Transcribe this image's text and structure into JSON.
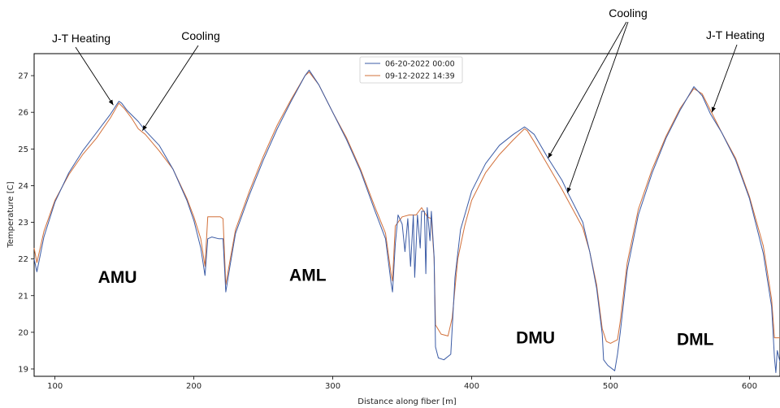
{
  "chart_data": {
    "type": "line",
    "title": "",
    "xlabel": "Distance along fiber [m]",
    "ylabel": "Temperature [C]",
    "xlim": [
      85,
      622
    ],
    "ylim": [
      18.8,
      27.6
    ],
    "xticks": [
      100,
      200,
      300,
      400,
      500,
      600
    ],
    "yticks": [
      19,
      20,
      21,
      22,
      23,
      24,
      25,
      26,
      27
    ],
    "grid": false,
    "legend_position": "top-center",
    "series": [
      {
        "name": "06-20-2022 00:00",
        "color": "#3b5ba5",
        "points": [
          [
            85,
            22.0
          ],
          [
            87,
            21.65
          ],
          [
            92,
            22.6
          ],
          [
            100,
            23.55
          ],
          [
            110,
            24.35
          ],
          [
            120,
            24.95
          ],
          [
            130,
            25.45
          ],
          [
            140,
            25.95
          ],
          [
            146,
            26.3
          ],
          [
            148,
            26.25
          ],
          [
            152,
            26.05
          ],
          [
            160,
            25.75
          ],
          [
            165,
            25.5
          ],
          [
            175,
            25.1
          ],
          [
            185,
            24.45
          ],
          [
            195,
            23.6
          ],
          [
            200,
            23.05
          ],
          [
            205,
            22.3
          ],
          [
            208,
            21.55
          ],
          [
            210,
            22.55
          ],
          [
            213,
            22.6
          ],
          [
            218,
            22.55
          ],
          [
            221,
            22.55
          ],
          [
            223,
            21.1
          ],
          [
            226,
            21.8
          ],
          [
            230,
            22.7
          ],
          [
            240,
            23.75
          ],
          [
            250,
            24.7
          ],
          [
            260,
            25.55
          ],
          [
            270,
            26.3
          ],
          [
            280,
            27.0
          ],
          [
            283,
            27.15
          ],
          [
            290,
            26.75
          ],
          [
            300,
            26.0
          ],
          [
            310,
            25.25
          ],
          [
            320,
            24.4
          ],
          [
            330,
            23.35
          ],
          [
            338,
            22.55
          ],
          [
            342,
            21.35
          ],
          [
            343,
            21.1
          ],
          [
            345,
            22.4
          ],
          [
            347,
            23.2
          ],
          [
            350,
            22.95
          ],
          [
            352,
            22.2
          ],
          [
            354,
            23.1
          ],
          [
            356,
            21.8
          ],
          [
            358,
            23.2
          ],
          [
            359,
            21.5
          ],
          [
            361,
            23.2
          ],
          [
            363,
            22.3
          ],
          [
            364,
            23.3
          ],
          [
            366,
            23.3
          ],
          [
            367,
            21.6
          ],
          [
            368,
            23.4
          ],
          [
            370,
            22.5
          ],
          [
            371,
            23.3
          ],
          [
            373,
            22.05
          ],
          [
            374,
            19.6
          ],
          [
            376,
            19.3
          ],
          [
            380,
            19.25
          ],
          [
            385,
            19.4
          ],
          [
            388,
            21.5
          ],
          [
            392,
            22.8
          ],
          [
            400,
            23.85
          ],
          [
            410,
            24.6
          ],
          [
            420,
            25.1
          ],
          [
            430,
            25.4
          ],
          [
            438,
            25.6
          ],
          [
            440,
            25.55
          ],
          [
            445,
            25.4
          ],
          [
            455,
            24.75
          ],
          [
            465,
            24.15
          ],
          [
            470,
            23.75
          ],
          [
            480,
            23.0
          ],
          [
            485,
            22.2
          ],
          [
            490,
            21.2
          ],
          [
            494,
            19.95
          ],
          [
            495,
            19.25
          ],
          [
            498,
            19.1
          ],
          [
            503,
            18.95
          ],
          [
            505,
            19.4
          ],
          [
            507,
            20.0
          ],
          [
            512,
            21.7
          ],
          [
            520,
            23.2
          ],
          [
            530,
            24.35
          ],
          [
            540,
            25.3
          ],
          [
            550,
            26.05
          ],
          [
            560,
            26.7
          ],
          [
            566,
            26.45
          ],
          [
            572,
            25.95
          ],
          [
            580,
            25.45
          ],
          [
            590,
            24.7
          ],
          [
            600,
            23.65
          ],
          [
            610,
            22.15
          ],
          [
            616,
            20.7
          ],
          [
            618,
            19.3
          ],
          [
            619,
            18.9
          ],
          [
            620,
            19.5
          ],
          [
            622,
            19.2
          ]
        ]
      },
      {
        "name": "09-12-2022 14:39",
        "color": "#d2703a",
        "points": [
          [
            85,
            22.3
          ],
          [
            87,
            21.9
          ],
          [
            92,
            22.75
          ],
          [
            100,
            23.6
          ],
          [
            110,
            24.3
          ],
          [
            120,
            24.85
          ],
          [
            130,
            25.3
          ],
          [
            140,
            25.85
          ],
          [
            146,
            26.25
          ],
          [
            150,
            26.1
          ],
          [
            155,
            25.85
          ],
          [
            160,
            25.55
          ],
          [
            165,
            25.4
          ],
          [
            175,
            24.95
          ],
          [
            185,
            24.45
          ],
          [
            195,
            23.65
          ],
          [
            200,
            23.15
          ],
          [
            205,
            22.55
          ],
          [
            208,
            21.8
          ],
          [
            210,
            23.15
          ],
          [
            215,
            23.15
          ],
          [
            219,
            23.15
          ],
          [
            221,
            23.1
          ],
          [
            223,
            21.3
          ],
          [
            226,
            21.95
          ],
          [
            230,
            22.8
          ],
          [
            240,
            23.85
          ],
          [
            250,
            24.8
          ],
          [
            260,
            25.65
          ],
          [
            270,
            26.35
          ],
          [
            280,
            27.0
          ],
          [
            283,
            27.1
          ],
          [
            290,
            26.75
          ],
          [
            300,
            26.0
          ],
          [
            310,
            25.3
          ],
          [
            320,
            24.45
          ],
          [
            330,
            23.45
          ],
          [
            338,
            22.7
          ],
          [
            342,
            21.6
          ],
          [
            343,
            21.4
          ],
          [
            345,
            22.9
          ],
          [
            350,
            23.15
          ],
          [
            355,
            23.2
          ],
          [
            360,
            23.2
          ],
          [
            364,
            23.4
          ],
          [
            368,
            23.15
          ],
          [
            371,
            23.1
          ],
          [
            373,
            22.0
          ],
          [
            374,
            20.2
          ],
          [
            378,
            19.95
          ],
          [
            383,
            19.9
          ],
          [
            386,
            20.4
          ],
          [
            390,
            22.0
          ],
          [
            395,
            22.9
          ],
          [
            400,
            23.6
          ],
          [
            410,
            24.35
          ],
          [
            420,
            24.85
          ],
          [
            430,
            25.25
          ],
          [
            438,
            25.55
          ],
          [
            440,
            25.5
          ],
          [
            445,
            25.2
          ],
          [
            455,
            24.55
          ],
          [
            465,
            23.9
          ],
          [
            470,
            23.55
          ],
          [
            480,
            22.85
          ],
          [
            485,
            22.2
          ],
          [
            490,
            21.3
          ],
          [
            494,
            20.1
          ],
          [
            497,
            19.75
          ],
          [
            500,
            19.7
          ],
          [
            505,
            19.8
          ],
          [
            507,
            20.3
          ],
          [
            512,
            21.9
          ],
          [
            520,
            23.35
          ],
          [
            530,
            24.45
          ],
          [
            540,
            25.35
          ],
          [
            550,
            26.1
          ],
          [
            560,
            26.65
          ],
          [
            566,
            26.5
          ],
          [
            572,
            26.05
          ],
          [
            580,
            25.45
          ],
          [
            590,
            24.75
          ],
          [
            600,
            23.7
          ],
          [
            610,
            22.35
          ],
          [
            616,
            20.9
          ],
          [
            618,
            19.85
          ],
          [
            622,
            19.85
          ]
        ]
      }
    ],
    "annotations": [
      {
        "text": "J-T Heating",
        "target": [
          142,
          26.2
        ]
      },
      {
        "text": "Cooling",
        "target": [
          163,
          25.5
        ]
      },
      {
        "text": "Cooling",
        "target": [
          455,
          24.75
        ]
      },
      {
        "text": "Cooling",
        "target": [
          469,
          23.8
        ]
      },
      {
        "text": "J-T Heating",
        "target": [
          573,
          26.0
        ]
      }
    ],
    "region_labels": [
      {
        "text": "AMU",
        "x": 145,
        "y": 21.35
      },
      {
        "text": "AML",
        "x": 282,
        "y": 21.4
      },
      {
        "text": "DMU",
        "x": 446,
        "y": 19.7
      },
      {
        "text": "DML",
        "x": 561,
        "y": 19.65
      }
    ]
  }
}
